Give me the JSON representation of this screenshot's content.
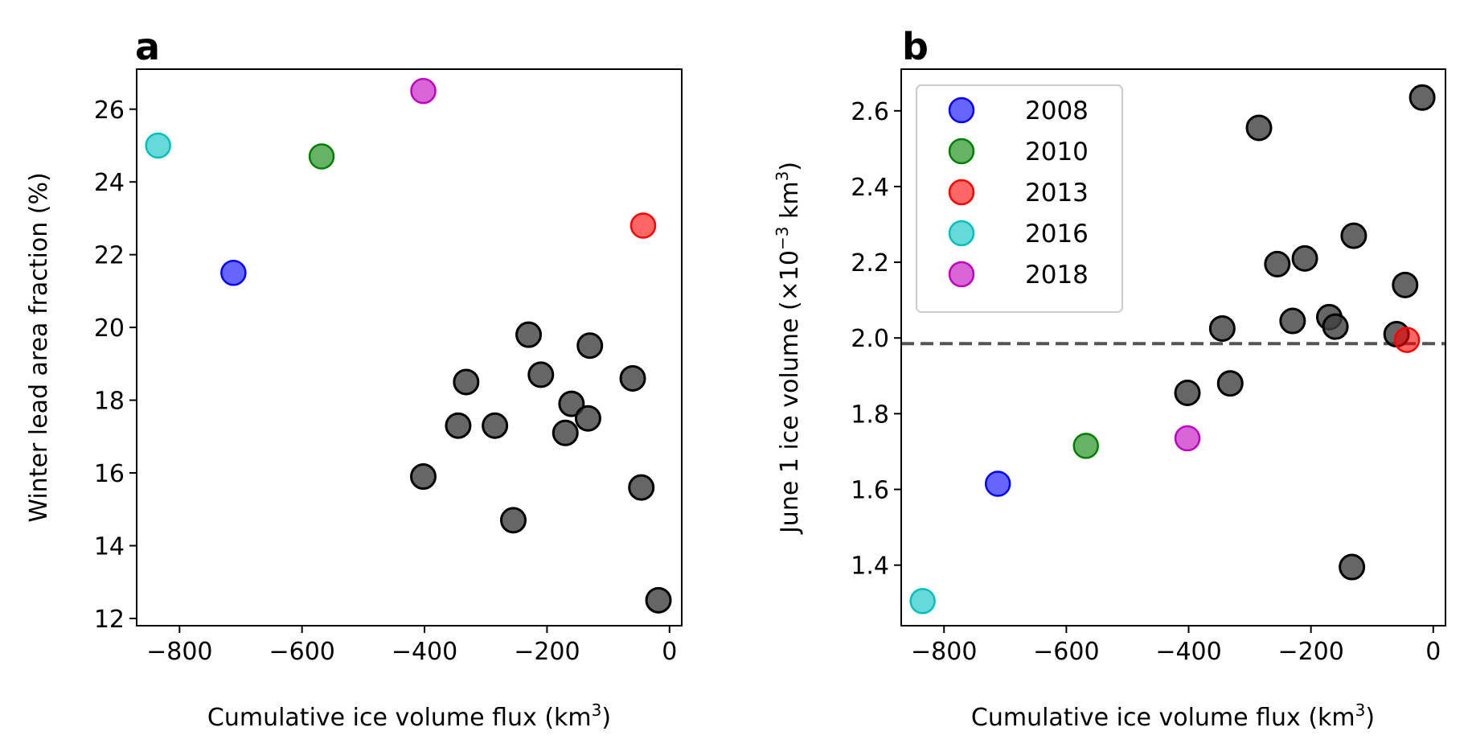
{
  "chart_data": [
    {
      "type": "scatter",
      "panel_label": "a",
      "xlabel": "Cumulative ice volume flux (km",
      "xlabel_sup": "3",
      "xlabel_end": ")",
      "ylabel": "Winter lead area fraction (%)",
      "xlim": [
        -870,
        20
      ],
      "ylim": [
        11.8,
        27.1
      ],
      "xticks": [
        -800,
        -600,
        -400,
        -200,
        0
      ],
      "xtick_labels": [
        "−800",
        "−600",
        "−400",
        "−200",
        "0"
      ],
      "yticks": [
        12,
        14,
        16,
        18,
        20,
        22,
        24,
        26
      ],
      "ytick_labels": [
        "12",
        "14",
        "16",
        "18",
        "20",
        "22",
        "24",
        "26"
      ],
      "grid": false,
      "highlighted": [
        {
          "year": "2008",
          "x": -712,
          "y": 21.5,
          "color": "#0000ff"
        },
        {
          "year": "2010",
          "x": -568,
          "y": 24.7,
          "color": "#008000"
        },
        {
          "year": "2013",
          "x": -43,
          "y": 22.8,
          "color": "#ff0000"
        },
        {
          "year": "2016",
          "x": -835,
          "y": 25.0,
          "color": "#00bfbf"
        },
        {
          "year": "2018",
          "x": -402,
          "y": 26.5,
          "color": "#bf00bf"
        }
      ],
      "other": {
        "color": "#404040",
        "points": [
          {
            "x": -230,
            "y": 19.8
          },
          {
            "x": -210,
            "y": 18.7
          },
          {
            "x": -130,
            "y": 19.5
          },
          {
            "x": -332,
            "y": 18.5
          },
          {
            "x": -160,
            "y": 17.9
          },
          {
            "x": -60,
            "y": 18.6
          },
          {
            "x": -345,
            "y": 17.3
          },
          {
            "x": -285,
            "y": 17.3
          },
          {
            "x": -170,
            "y": 17.1
          },
          {
            "x": -133,
            "y": 17.5
          },
          {
            "x": -402,
            "y": 15.9
          },
          {
            "x": -46,
            "y": 15.6
          },
          {
            "x": -255,
            "y": 14.7
          },
          {
            "x": -18,
            "y": 12.5
          }
        ]
      }
    },
    {
      "type": "scatter",
      "panel_label": "b",
      "xlabel": "Cumulative ice volume flux (km",
      "xlabel_sup": "3",
      "xlabel_end": ")",
      "ylabel": "June 1 ice volume (×10",
      "ylabel_sup1": "−3",
      "ylabel_mid": " km",
      "ylabel_sup2": "3",
      "ylabel_end": ")",
      "xlim": [
        -870,
        20
      ],
      "ylim": [
        1.24,
        2.71
      ],
      "xticks": [
        -800,
        -600,
        -400,
        -200,
        0
      ],
      "xtick_labels": [
        "−800",
        "−600",
        "−400",
        "−200",
        "0"
      ],
      "yticks": [
        1.4,
        1.6,
        1.8,
        2.0,
        2.2,
        2.4,
        2.6
      ],
      "ytick_labels": [
        "1.4",
        "1.6",
        "1.8",
        "2.0",
        "2.2",
        "2.4",
        "2.6"
      ],
      "grid": false,
      "reference_line": {
        "y": 1.985,
        "style": "dashed",
        "color": "#555555"
      },
      "legend": {
        "placement": "upper-left",
        "entries": [
          {
            "label": "2008",
            "color": "#0000ff"
          },
          {
            "label": "2010",
            "color": "#008000"
          },
          {
            "label": "2013",
            "color": "#ff0000"
          },
          {
            "label": "2016",
            "color": "#00bfbf"
          },
          {
            "label": "2018",
            "color": "#bf00bf"
          }
        ]
      },
      "highlighted": [
        {
          "year": "2008",
          "x": -712,
          "y": 1.615,
          "color": "#0000ff"
        },
        {
          "year": "2010",
          "x": -568,
          "y": 1.715,
          "color": "#008000"
        },
        {
          "year": "2013",
          "x": -43,
          "y": 1.995,
          "color": "#ff0000"
        },
        {
          "year": "2016",
          "x": -835,
          "y": 1.305,
          "color": "#00bfbf"
        },
        {
          "year": "2018",
          "x": -402,
          "y": 1.735,
          "color": "#bf00bf"
        }
      ],
      "other": {
        "color": "#404040",
        "points": [
          {
            "x": -18,
            "y": 2.635
          },
          {
            "x": -285,
            "y": 2.555
          },
          {
            "x": -130,
            "y": 2.27
          },
          {
            "x": -210,
            "y": 2.21
          },
          {
            "x": -255,
            "y": 2.195
          },
          {
            "x": -46,
            "y": 2.14
          },
          {
            "x": -230,
            "y": 2.045
          },
          {
            "x": -170,
            "y": 2.055
          },
          {
            "x": -160,
            "y": 2.03
          },
          {
            "x": -345,
            "y": 2.025
          },
          {
            "x": -60,
            "y": 2.01
          },
          {
            "x": -332,
            "y": 1.88
          },
          {
            "x": -402,
            "y": 1.855
          },
          {
            "x": -133,
            "y": 1.395
          }
        ]
      }
    }
  ]
}
